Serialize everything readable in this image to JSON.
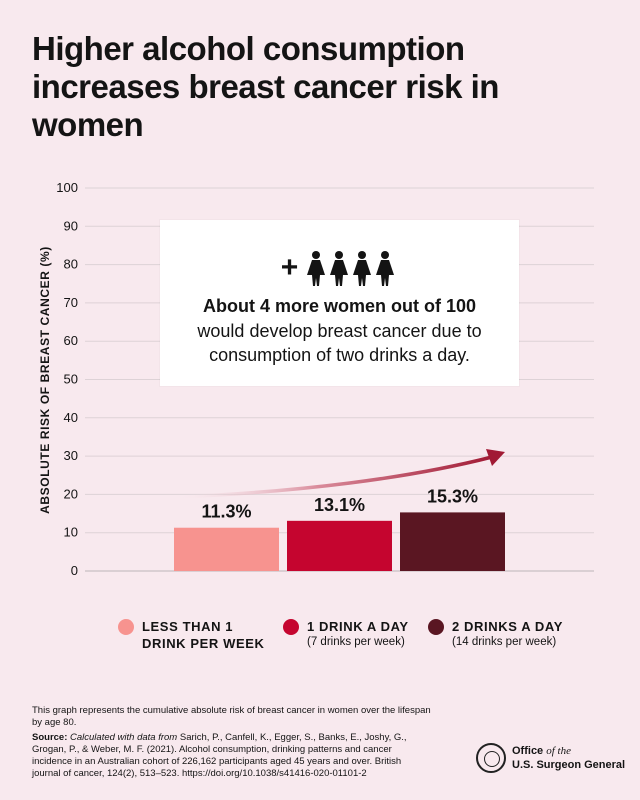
{
  "title": "Higher alcohol consumption increases breast cancer risk in women",
  "colors": {
    "background": "#f8e9ee",
    "less_than_1": "#f7938f",
    "one_drink": "#c5052f",
    "two_drinks": "#5a1622",
    "arrow": "#a11a34"
  },
  "callout": {
    "icon": "plus-four-women-icon",
    "strong": "About 4 more women out of 100",
    "text": "would develop breast cancer due to consumption of two drinks a day."
  },
  "chart_data": {
    "type": "bar",
    "categories": [
      "LESS THAN 1 DRINK PER WEEK",
      "1 DRINK A DAY",
      "2 DRINKS A DAY"
    ],
    "values": [
      11.3,
      13.1,
      15.3
    ],
    "data_labels": [
      "11.3%",
      "13.1%",
      "15.3%"
    ],
    "ylabel": "ABSOLUTE RISK OF BREAST CANCER (%)",
    "ylim": [
      0,
      100
    ],
    "yticks": [
      0,
      10,
      20,
      30,
      40,
      50,
      60,
      70,
      80,
      90,
      100
    ],
    "grid": true,
    "legend_position": "bottom"
  },
  "legend": [
    {
      "label": "LESS THAN 1 DRINK PER WEEK",
      "line1": "LESS THAN 1",
      "line2": "DRINK PER WEEK",
      "sub": "",
      "color": "#f7938f"
    },
    {
      "label": "1 DRINK A DAY",
      "line1": "1 DRINK A DAY",
      "line2": "",
      "sub": "(7 drinks per week)",
      "color": "#c5052f"
    },
    {
      "label": "2 DRINKS A DAY",
      "line1": "2 DRINKS A DAY",
      "line2": "",
      "sub": "(14 drinks per week)",
      "color": "#5a1622"
    }
  ],
  "footnote": "This graph represents the cumulative absolute risk of breast cancer in women over the lifespan by age 80.",
  "source": {
    "label": "Source:",
    "italic": "Calculated with data from",
    "text": "Sarich, P., Canfell, K., Egger, S., Banks, E., Joshy, G., Grogan, P., & Weber, M. F. (2021). Alcohol consumption, drinking patterns and cancer incidence in an Australian cohort of 226,162 participants aged 45 years and over. British journal of cancer, 124(2), 513–523. https://doi.org/10.1038/s41416-020-01101-2"
  },
  "org": {
    "office": "Office",
    "of_the": "of the",
    "name": "U.S. Surgeon General",
    "seal_text": "OFFICE OF THE SURGEON GENERAL"
  }
}
